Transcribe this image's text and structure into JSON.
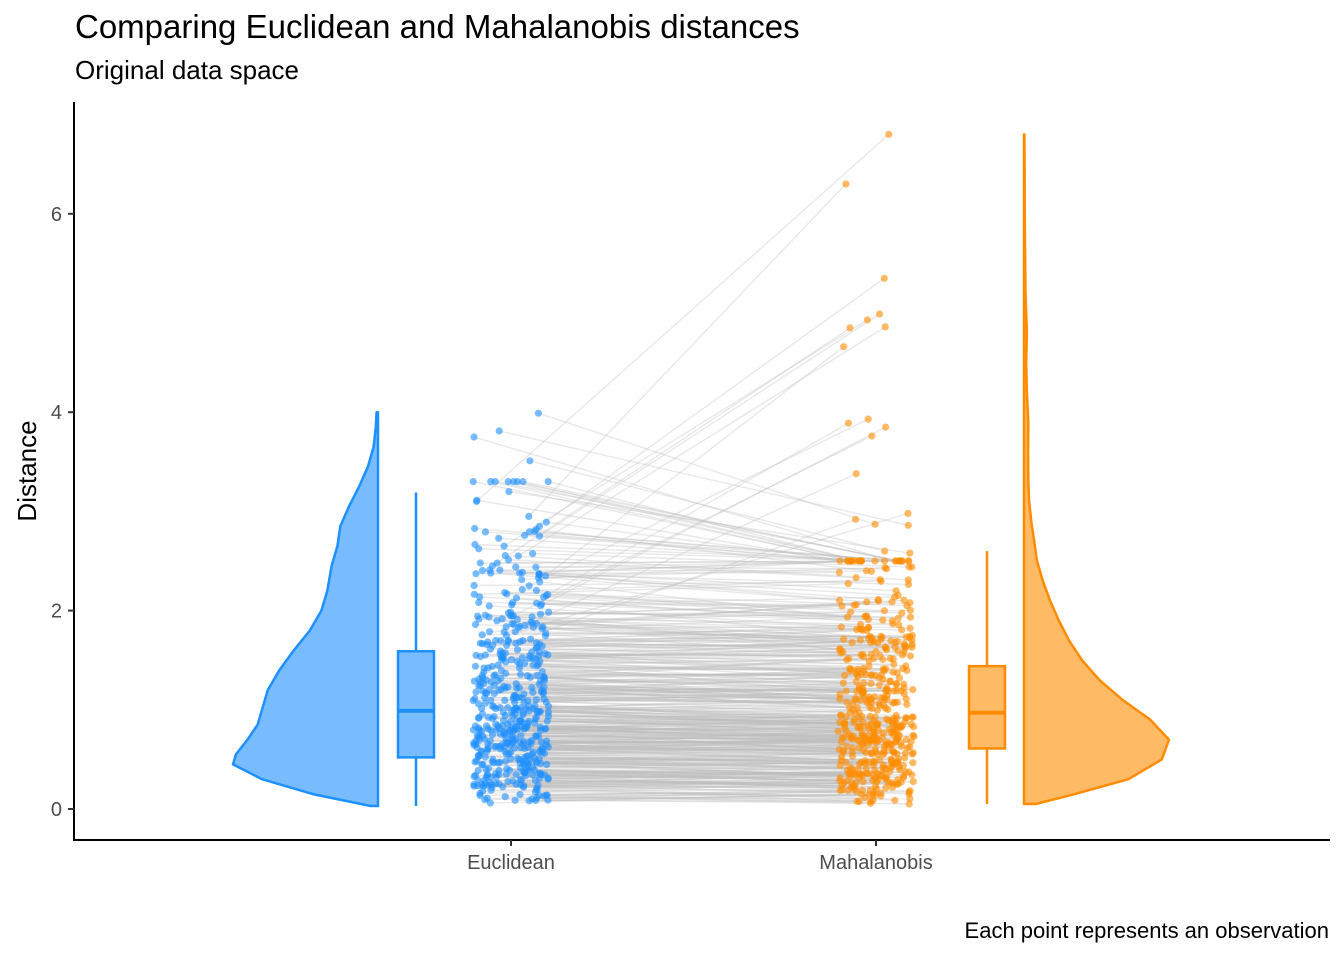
{
  "chart_data": {
    "type": "raincloud",
    "title": "Comparing Euclidean and Mahalanobis distances",
    "subtitle": "Original data space",
    "ylabel": "Distance",
    "xlabel": "",
    "caption": "Each point represents an observation",
    "categories": [
      "Euclidean",
      "Mahalanobis"
    ],
    "yticks": [
      0,
      2,
      4,
      6
    ],
    "ylim": [
      -0.3,
      7.1
    ],
    "grid": false,
    "legend": "none",
    "colors": {
      "Euclidean": "#1E90FF",
      "Mahalanobis": "#FF8C00",
      "link": "#BEBEBE"
    },
    "box_stats": [
      {
        "name": "Euclidean",
        "whisker_low": 0.03,
        "q1": 0.52,
        "median": 0.99,
        "q3": 1.59,
        "whisker_high": 3.19
      },
      {
        "name": "Mahalanobis",
        "whisker_low": 0.05,
        "q1": 0.61,
        "median": 0.97,
        "q3": 1.44,
        "whisker_high": 2.6
      }
    ],
    "density": [
      {
        "name": "Euclidean",
        "y": [
          0.03,
          0.15,
          0.3,
          0.45,
          0.55,
          0.7,
          0.85,
          1.0,
          1.2,
          1.4,
          1.6,
          1.8,
          2.0,
          2.2,
          2.45,
          2.65,
          2.85,
          3.05,
          3.25,
          3.45,
          3.65,
          3.85,
          4.0
        ],
        "width": [
          0.05,
          0.45,
          0.8,
          1.0,
          0.98,
          0.9,
          0.83,
          0.8,
          0.76,
          0.68,
          0.58,
          0.47,
          0.39,
          0.35,
          0.32,
          0.28,
          0.26,
          0.2,
          0.13,
          0.07,
          0.03,
          0.015,
          0.01
        ]
      },
      {
        "name": "Mahalanobis",
        "y": [
          0.05,
          0.15,
          0.3,
          0.5,
          0.7,
          0.9,
          1.1,
          1.3,
          1.5,
          1.7,
          1.9,
          2.1,
          2.3,
          2.5,
          2.7,
          2.9,
          3.1,
          3.3,
          3.6,
          3.9,
          4.2,
          4.5,
          4.8,
          5.0,
          5.2,
          5.5,
          5.8,
          6.1,
          6.5,
          6.8
        ],
        "width": [
          0.08,
          0.35,
          0.72,
          0.95,
          1.0,
          0.87,
          0.68,
          0.52,
          0.4,
          0.31,
          0.24,
          0.18,
          0.13,
          0.09,
          0.07,
          0.05,
          0.035,
          0.03,
          0.028,
          0.03,
          0.02,
          0.015,
          0.02,
          0.015,
          0.01,
          0.008,
          0.006,
          0.005,
          0.004,
          0.003
        ]
      }
    ],
    "outlier_pairs": [
      {
        "euclidean": 3.99,
        "mahalanobis": 2.87
      },
      {
        "euclidean": 3.81,
        "mahalanobis": 2.86
      },
      {
        "euclidean": 3.75,
        "mahalanobis": 2.44
      },
      {
        "euclidean": 3.51,
        "mahalanobis": 2.6
      },
      {
        "euclidean": 3.2,
        "mahalanobis": 2.58
      },
      {
        "euclidean": 3.1,
        "mahalanobis": 6.8
      },
      {
        "euclidean": 2.95,
        "mahalanobis": 6.3
      },
      {
        "euclidean": 2.85,
        "mahalanobis": 5.35
      },
      {
        "euclidean": 2.75,
        "mahalanobis": 4.99
      },
      {
        "euclidean": 2.65,
        "mahalanobis": 4.93
      },
      {
        "euclidean": 2.55,
        "mahalanobis": 4.86
      },
      {
        "euclidean": 2.45,
        "mahalanobis": 4.85
      },
      {
        "euclidean": 2.35,
        "mahalanobis": 4.66
      },
      {
        "euclidean": 2.25,
        "mahalanobis": 3.93
      },
      {
        "euclidean": 2.15,
        "mahalanobis": 3.89
      },
      {
        "euclidean": 2.05,
        "mahalanobis": 3.85
      },
      {
        "euclidean": 1.95,
        "mahalanobis": 3.76
      },
      {
        "euclidean": 1.85,
        "mahalanobis": 3.38
      },
      {
        "euclidean": 1.75,
        "mahalanobis": 2.98
      },
      {
        "euclidean": 1.65,
        "mahalanobis": 2.92
      }
    ],
    "n_observations": 500
  }
}
